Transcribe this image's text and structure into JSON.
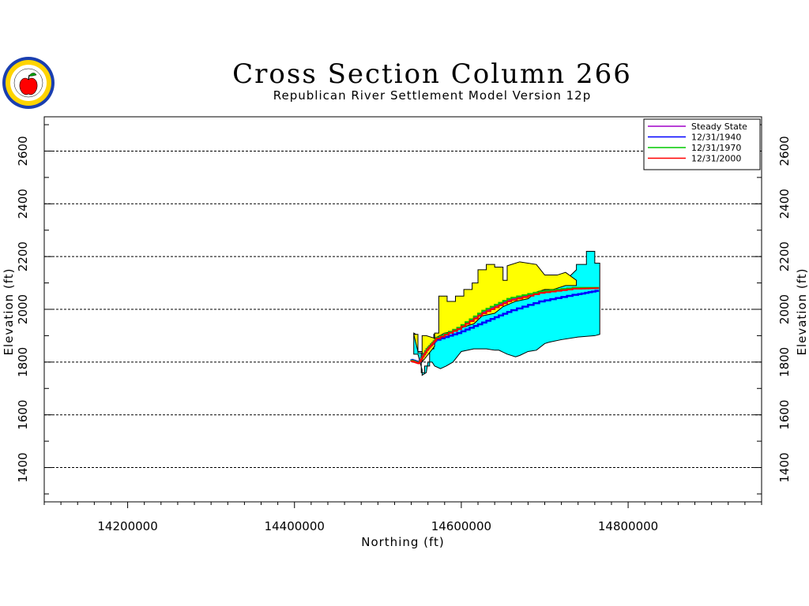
{
  "chart_data": {
    "type": "line",
    "title": "Cross Section Column 266",
    "subtitle": "Republican River Settlement Model Version 12p",
    "xlabel": "Northing (ft)",
    "ylabel": "Elevation (ft)",
    "xlim": [
      14100000,
      14960000
    ],
    "ylim": [
      1270000,
      2730000
    ],
    "y_units_scale": 0.001,
    "xlim_data": [
      14100000,
      14960000
    ],
    "ylim_data": [
      1270,
      2730
    ],
    "xticks": [
      "14200000",
      "14400000",
      "14600000",
      "14800000"
    ],
    "xtick_values": [
      14200000,
      14400000,
      14600000,
      14800000
    ],
    "yticks": [
      "1400",
      "1600",
      "1800",
      "2000",
      "2200",
      "2400",
      "2600"
    ],
    "ytick_values": [
      1400,
      1600,
      1800,
      2000,
      2200,
      2400,
      2600
    ],
    "grid": "horizontal-dashed",
    "legend_position": "top-right",
    "series": [
      {
        "name": "Steady State",
        "color": "#a000c8",
        "x": [
          14540000,
          14550000,
          14560000,
          14570000,
          14600000,
          14630000,
          14660000,
          14700000,
          14740000,
          14765000
        ],
        "y": [
          1810,
          1800,
          1850,
          1885,
          1930,
          1990,
          2035,
          2065,
          2080,
          2080
        ]
      },
      {
        "name": "12/31/1940",
        "color": "#0000ff",
        "x": [
          14540000,
          14550000,
          14560000,
          14570000,
          14600000,
          14630000,
          14660000,
          14700000,
          14740000,
          14765000
        ],
        "y": [
          1810,
          1798,
          1848,
          1880,
          1910,
          1950,
          1990,
          2030,
          2055,
          2070
        ]
      },
      {
        "name": "12/31/1970",
        "color": "#00c800",
        "x": [
          14540000,
          14550000,
          14560000,
          14570000,
          14600000,
          14630000,
          14660000,
          14700000,
          14740000,
          14765000
        ],
        "y": [
          1808,
          1797,
          1850,
          1885,
          1930,
          1995,
          2040,
          2068,
          2082,
          2082
        ]
      },
      {
        "name": "12/31/2000",
        "color": "#ff0000",
        "x": [
          14540000,
          14550000,
          14560000,
          14570000,
          14600000,
          14630000,
          14660000,
          14700000,
          14740000,
          14765000
        ],
        "y": [
          1805,
          1795,
          1845,
          1882,
          1925,
          1985,
          2030,
          2062,
          2078,
          2080
        ]
      }
    ],
    "layers": [
      {
        "name": "top layer",
        "color": "#ffff00"
      },
      {
        "name": "lower layer",
        "color": "#00ffff"
      }
    ]
  },
  "logo": {
    "name": "state-seal",
    "apple_color": "#ff0000"
  }
}
